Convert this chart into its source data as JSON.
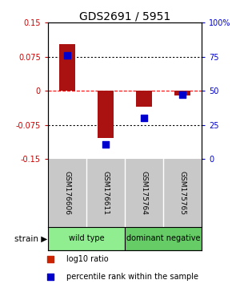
{
  "title": "GDS2691 / 5951",
  "samples": [
    "GSM176606",
    "GSM176611",
    "GSM175764",
    "GSM175765"
  ],
  "log10_ratio": [
    0.103,
    -0.103,
    -0.034,
    -0.01
  ],
  "percentile_rank": [
    76,
    11,
    30,
    47
  ],
  "groups": [
    {
      "label": "wild type",
      "samples": [
        0,
        1
      ],
      "color": "#90ee90"
    },
    {
      "label": "dominant negative",
      "samples": [
        2,
        3
      ],
      "color": "#66cc66"
    }
  ],
  "ylim_left": [
    -0.15,
    0.15
  ],
  "ylim_right": [
    0,
    100
  ],
  "yticks_left": [
    -0.15,
    -0.075,
    0,
    0.075,
    0.15
  ],
  "yticks_right": [
    0,
    25,
    50,
    75,
    100
  ],
  "ytick_labels_right": [
    "0",
    "25",
    "50",
    "75",
    "100%"
  ],
  "hlines": [
    -0.075,
    0,
    0.075
  ],
  "hline_colors": [
    "black",
    "red",
    "black"
  ],
  "hline_styles": [
    "dotted",
    "dashed",
    "dotted"
  ],
  "bar_color": "#aa1111",
  "dot_color": "#0000cc",
  "bar_width": 0.4,
  "dot_size": 40,
  "left_axis_color": "#cc0000",
  "right_axis_color": "#0000cc",
  "legend_items": [
    {
      "color": "#cc2200",
      "label": "log10 ratio"
    },
    {
      "color": "#0000cc",
      "label": "percentile rank within the sample"
    }
  ],
  "strain_label": "strain",
  "bg_color": "#ffffff",
  "sample_bg_color": "#c8c8c8",
  "fig_width": 3.0,
  "fig_height": 3.54
}
